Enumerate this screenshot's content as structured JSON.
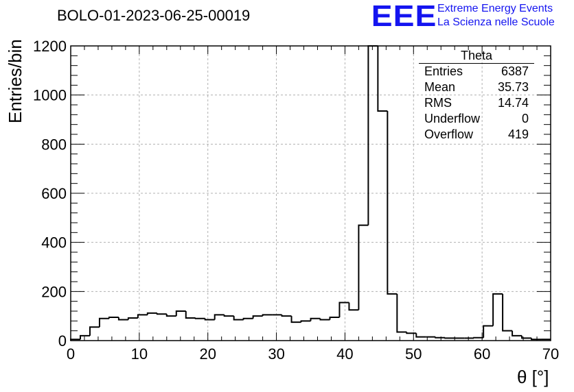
{
  "header": {
    "run_title": "BOLO-01-2023-06-25-00019",
    "logo": "EEE",
    "logo_line1": "Extreme Energy Events",
    "logo_line2": "La Scienza nelle Scuole"
  },
  "stats_box": {
    "title": "Theta",
    "rows": [
      {
        "label": "Entries",
        "value": "6387"
      },
      {
        "label": "Mean",
        "value": "35.73"
      },
      {
        "label": "RMS",
        "value": "14.74"
      },
      {
        "label": "Underflow",
        "value": "0"
      },
      {
        "label": "Overflow",
        "value": "419"
      }
    ]
  },
  "colors": {
    "line": "#000000",
    "grid": "#b0b0b0",
    "logo": "#1414f0"
  },
  "chart_data": {
    "type": "bar",
    "style": "step-histogram",
    "xlabel": "θ [°]",
    "ylabel": "Entries/bin",
    "xlim": [
      0,
      70
    ],
    "ylim": [
      0,
      1200
    ],
    "grid": true,
    "x_ticks": [
      0,
      10,
      20,
      30,
      40,
      50,
      60,
      70
    ],
    "y_ticks": [
      0,
      200,
      400,
      600,
      800,
      1000,
      1200
    ],
    "bin_edges_start": 0,
    "bin_width": 1.4,
    "values": [
      5,
      20,
      55,
      90,
      95,
      85,
      92,
      105,
      112,
      108,
      100,
      120,
      92,
      90,
      85,
      105,
      100,
      85,
      90,
      100,
      105,
      105,
      100,
      75,
      80,
      90,
      85,
      95,
      155,
      125,
      470,
      1200,
      935,
      190,
      35,
      30,
      15,
      15,
      12,
      10,
      10,
      10,
      12,
      60,
      190,
      40,
      20,
      10,
      5,
      5
    ]
  }
}
